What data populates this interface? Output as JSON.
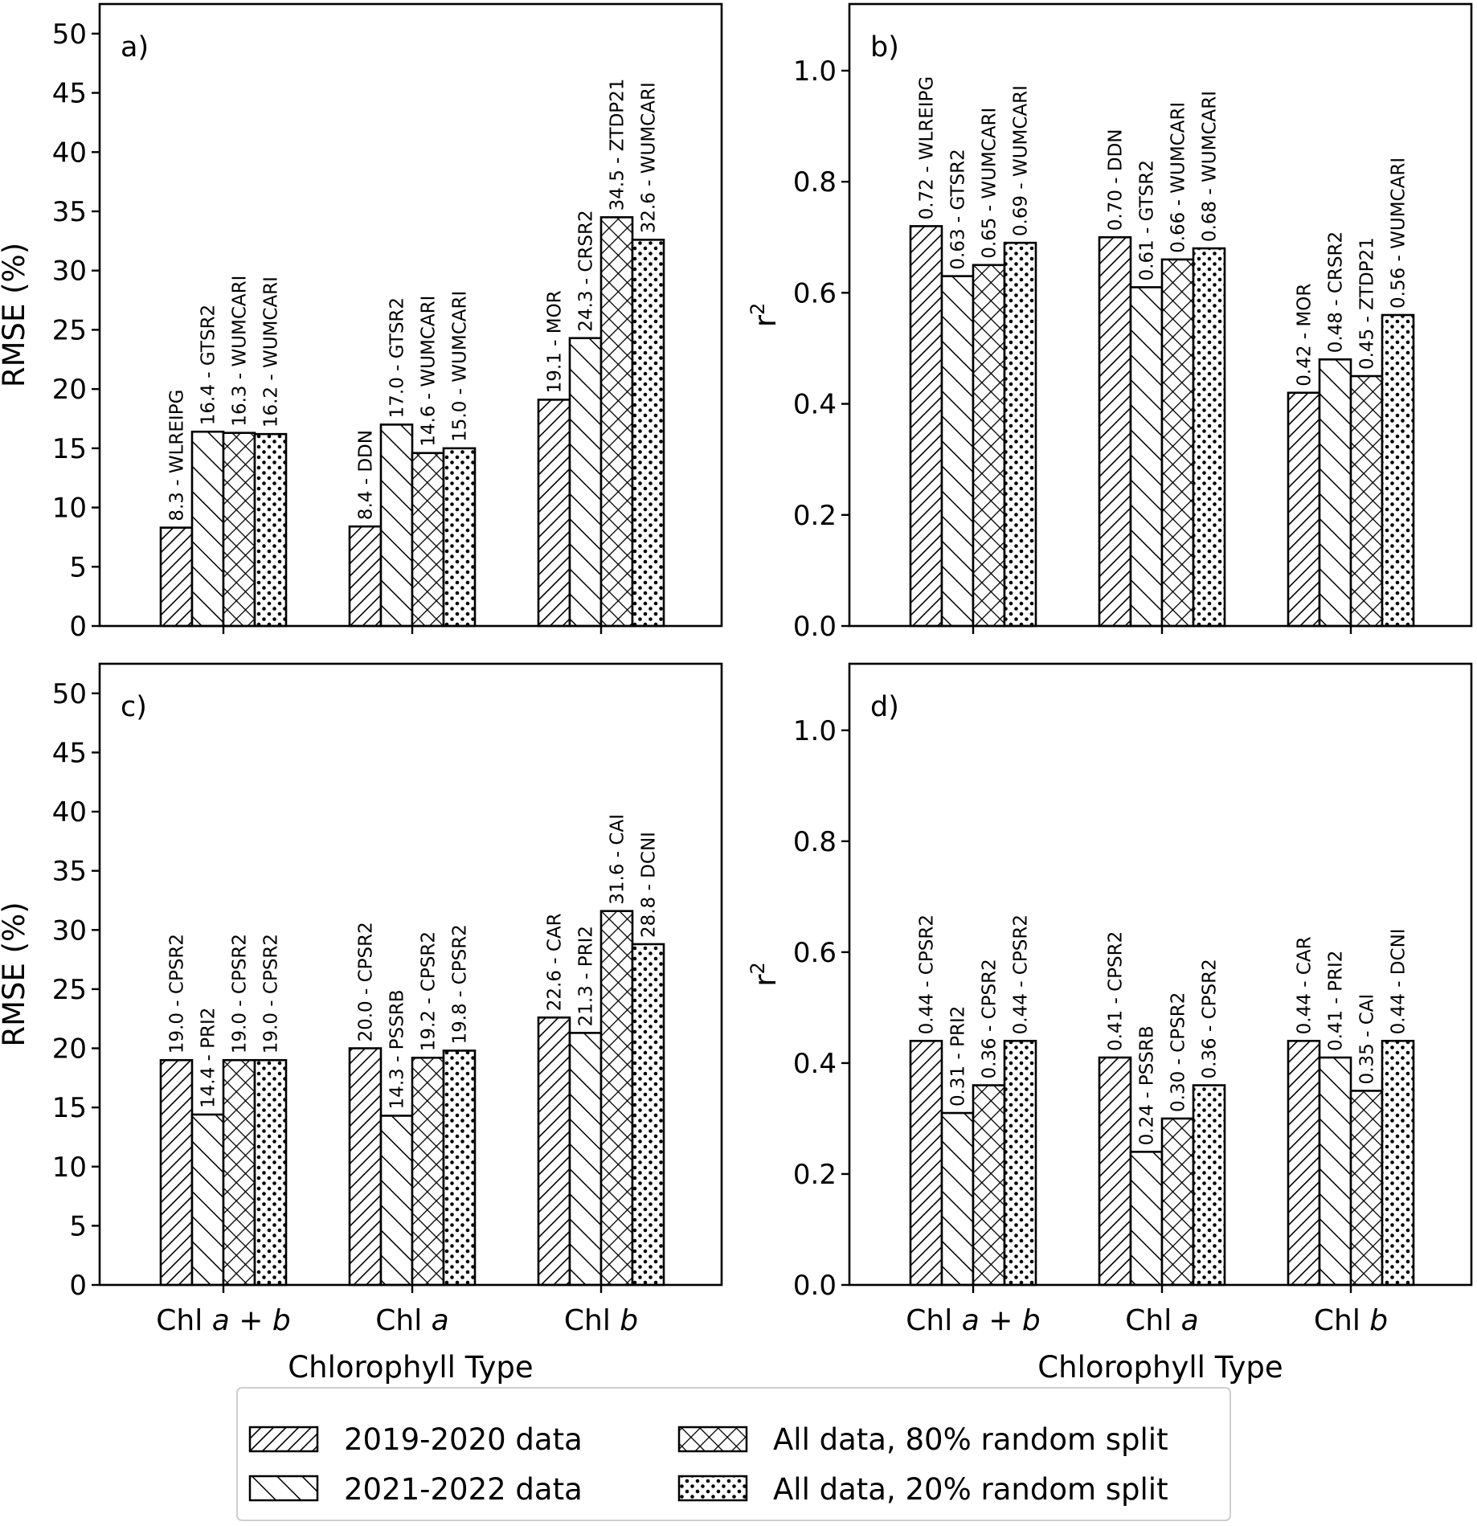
{
  "chart_data": [
    {
      "panel": "a)",
      "type": "bar",
      "ylabel": "RMSE (%)",
      "xlabel": "",
      "ylim": [
        0,
        52.5
      ],
      "yticks": [
        0,
        5,
        10,
        15,
        20,
        25,
        30,
        35,
        40,
        45,
        50
      ],
      "ytick_labels": [
        "0",
        "5",
        "10",
        "15",
        "20",
        "25",
        "30",
        "35",
        "40",
        "45",
        "50"
      ],
      "categories": [
        "Chl a + b",
        "Chl a",
        "Chl b"
      ],
      "show_categories": false,
      "series": [
        {
          "name": "2019-2020 data",
          "values": [
            8.3,
            8.4,
            19.1
          ],
          "labels": [
            "8.3 - WLREIPG",
            "8.4 - DDN",
            "19.1 - MOR"
          ]
        },
        {
          "name": "2021-2022 data",
          "values": [
            16.4,
            17.0,
            24.3
          ],
          "labels": [
            "16.4 - GTSR2",
            "17.0 - GTSR2",
            "24.3 - CRSR2"
          ]
        },
        {
          "name": "All data, 80% random split",
          "values": [
            16.3,
            14.6,
            34.5
          ],
          "labels": [
            "16.3 - WUMCARI",
            "14.6 - WUMCARI",
            "34.5 - ZTDP21"
          ]
        },
        {
          "name": "All data, 20% random split",
          "values": [
            16.2,
            15.0,
            32.6
          ],
          "labels": [
            "16.2 - WUMCARI",
            "15.0 - WUMCARI",
            "32.6 - WUMCARI"
          ]
        }
      ]
    },
    {
      "panel": "b)",
      "type": "bar",
      "ylabel": "r2",
      "xlabel": "",
      "ylim": [
        0,
        1.12
      ],
      "yticks": [
        0,
        0.2,
        0.4,
        0.6,
        0.8,
        1.0
      ],
      "ytick_labels": [
        "0.0",
        "0.2",
        "0.4",
        "0.6",
        "0.8",
        "1.0"
      ],
      "categories": [
        "Chl a + b",
        "Chl a",
        "Chl b"
      ],
      "show_categories": false,
      "series": [
        {
          "name": "2019-2020 data",
          "values": [
            0.72,
            0.7,
            0.42
          ],
          "labels": [
            "0.72 - WLREIPG",
            "0.70 - DDN",
            "0.42 - MOR"
          ]
        },
        {
          "name": "2021-2022 data",
          "values": [
            0.63,
            0.61,
            0.48
          ],
          "labels": [
            "0.63 - GTSR2",
            "0.61 - GTSR2",
            "0.48 - CRSR2"
          ]
        },
        {
          "name": "All data, 80% random split",
          "values": [
            0.65,
            0.66,
            0.45
          ],
          "labels": [
            "0.65 - WUMCARI",
            "0.66 - WUMCARI",
            "0.45 - ZTDP21"
          ]
        },
        {
          "name": "All data, 20% random split",
          "values": [
            0.69,
            0.68,
            0.56
          ],
          "labels": [
            "0.69 - WUMCARI",
            "0.68 - WUMCARI",
            "0.56 - WUMCARI"
          ]
        }
      ]
    },
    {
      "panel": "c)",
      "type": "bar",
      "ylabel": "RMSE (%)",
      "xlabel": "Chlorophyll Type",
      "ylim": [
        0,
        52.5
      ],
      "yticks": [
        0,
        5,
        10,
        15,
        20,
        25,
        30,
        35,
        40,
        45,
        50
      ],
      "ytick_labels": [
        "0",
        "5",
        "10",
        "15",
        "20",
        "25",
        "30",
        "35",
        "40",
        "45",
        "50"
      ],
      "categories": [
        "Chl a + b",
        "Chl a",
        "Chl b"
      ],
      "show_categories": true,
      "series": [
        {
          "name": "2019-2020 data",
          "values": [
            19.0,
            20.0,
            22.6
          ],
          "labels": [
            "19.0 - CPSR2",
            "20.0 - CPSR2",
            "22.6 - CAR"
          ]
        },
        {
          "name": "2021-2022 data",
          "values": [
            14.4,
            14.3,
            21.3
          ],
          "labels": [
            "14.4 - PRI2",
            "14.3 - PSSRB",
            "21.3 - PRI2"
          ]
        },
        {
          "name": "All data, 80% random split",
          "values": [
            19.0,
            19.2,
            31.6
          ],
          "labels": [
            "19.0 - CPSR2",
            "19.2 - CPSR2",
            "31.6 - CAI"
          ]
        },
        {
          "name": "All data, 20% random split",
          "values": [
            19.0,
            19.8,
            28.8
          ],
          "labels": [
            "19.0 - CPSR2",
            "19.8 - CPSR2",
            "28.8 - DCNI"
          ]
        }
      ]
    },
    {
      "panel": "d)",
      "type": "bar",
      "ylabel": "r2",
      "xlabel": "Chlorophyll Type",
      "ylim": [
        0,
        1.12
      ],
      "yticks": [
        0,
        0.2,
        0.4,
        0.6,
        0.8,
        1.0
      ],
      "ytick_labels": [
        "0.0",
        "0.2",
        "0.4",
        "0.6",
        "0.8",
        "1.0"
      ],
      "categories": [
        "Chl a + b",
        "Chl a",
        "Chl b"
      ],
      "show_categories": true,
      "series": [
        {
          "name": "2019-2020 data",
          "values": [
            0.44,
            0.41,
            0.44
          ],
          "labels": [
            "0.44 - CPSR2",
            "0.41 - CPSR2",
            "0.44 - CAR"
          ]
        },
        {
          "name": "2021-2022 data",
          "values": [
            0.31,
            0.24,
            0.41
          ],
          "labels": [
            "0.31 - PRI2",
            "0.24 - PSSRB",
            "0.41 - PRI2"
          ]
        },
        {
          "name": "All data, 80% random split",
          "values": [
            0.36,
            0.3,
            0.35
          ],
          "labels": [
            "0.36 - CPSR2",
            "0.30 - CPSR2",
            "0.35 - CAI"
          ]
        },
        {
          "name": "All data, 20% random split",
          "values": [
            0.44,
            0.36,
            0.44
          ],
          "labels": [
            "0.44 - CPSR2",
            "0.36 - CPSR2",
            "0.44 - DCNI"
          ]
        }
      ]
    }
  ],
  "legend": {
    "entries": [
      {
        "label": "2019-2020 data",
        "pattern": "diag-dense"
      },
      {
        "label": "2021-2022 data",
        "pattern": "backdiag"
      },
      {
        "label": "All data, 80% random split",
        "pattern": "crosshatch"
      },
      {
        "label": "All data, 20% random split",
        "pattern": "dots"
      }
    ],
    "placement": "bottom-center"
  }
}
